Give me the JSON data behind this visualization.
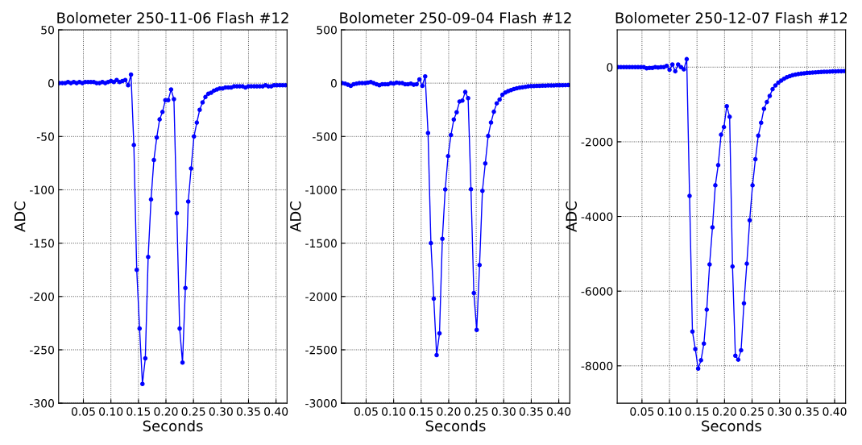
{
  "chart_data": [
    {
      "type": "line",
      "title": "Bolometer 250-11-06 Flash #12",
      "xlabel": "Seconds",
      "ylabel": "ADC",
      "xlim": [
        0.005,
        0.42
      ],
      "xticks": [
        {
          "value": 0.05,
          "label": "0.05"
        },
        {
          "value": 0.1,
          "label": "0.10"
        },
        {
          "value": 0.15,
          "label": "0.15"
        },
        {
          "value": 0.2,
          "label": "0.20"
        },
        {
          "value": 0.25,
          "label": "0.25"
        },
        {
          "value": 0.3,
          "label": "0.30"
        },
        {
          "value": 0.35,
          "label": "0.35"
        },
        {
          "value": 0.4,
          "label": "0.40"
        }
      ],
      "ylim": [
        -300,
        50
      ],
      "yticks": [
        -300,
        -250,
        -200,
        -150,
        -100,
        -50,
        0,
        50
      ],
      "grid": true,
      "marker": "circle",
      "line_style": "solid",
      "x": [
        0.0065,
        0.0117,
        0.0169,
        0.0221,
        0.0273,
        0.0325,
        0.0377,
        0.0429,
        0.0481,
        0.0533,
        0.0585,
        0.0637,
        0.0689,
        0.0741,
        0.0793,
        0.0845,
        0.0897,
        0.0949,
        0.1001,
        0.1053,
        0.1105,
        0.1157,
        0.1209,
        0.1261,
        0.1313,
        0.1365,
        0.1417,
        0.1469,
        0.1521,
        0.1573,
        0.1625,
        0.1677,
        0.1729,
        0.1781,
        0.1833,
        0.1885,
        0.1937,
        0.1989,
        0.2041,
        0.2093,
        0.2145,
        0.2197,
        0.2249,
        0.2301,
        0.2353,
        0.2405,
        0.2457,
        0.2509,
        0.2561,
        0.2613,
        0.2665,
        0.2717,
        0.2769,
        0.2821,
        0.2873,
        0.2925,
        0.2977,
        0.3029,
        0.3081,
        0.3133,
        0.3185,
        0.3237,
        0.3289,
        0.3341,
        0.3393,
        0.3445,
        0.3497,
        0.3549,
        0.3601,
        0.3653,
        0.3705,
        0.3757,
        0.3809,
        0.3861,
        0.3913,
        0.3965,
        0.4017,
        0.4069,
        0.4121,
        0.4173
      ],
      "series": [
        {
          "color": "#0000ff",
          "values": [
            0,
            0,
            0,
            1,
            0,
            1,
            0,
            1,
            0,
            1,
            1,
            1,
            1,
            0,
            0,
            1,
            0,
            1,
            2,
            1,
            3,
            1,
            2,
            3,
            -2,
            8,
            -58,
            -175,
            -230,
            -282,
            -258,
            -163,
            -109,
            -72,
            -51,
            -34,
            -27,
            -16,
            -16,
            -6,
            -15,
            -122,
            -230,
            -262,
            -192,
            -111,
            -80,
            -50,
            -37,
            -25,
            -18,
            -13,
            -10,
            -9,
            -7,
            -6,
            -5,
            -5,
            -4,
            -4,
            -4,
            -3,
            -3,
            -3,
            -3,
            -4,
            -3,
            -3,
            -3,
            -3,
            -3,
            -3,
            -2,
            -3,
            -3,
            -2,
            -2,
            -2,
            -2,
            -2
          ]
        }
      ]
    },
    {
      "type": "line",
      "title": "Bolometer 250-09-04 Flash #12",
      "xlabel": "Seconds",
      "ylabel": "ADC",
      "xlim": [
        0.005,
        0.42
      ],
      "xticks": [
        {
          "value": 0.05,
          "label": "0.05"
        },
        {
          "value": 0.1,
          "label": "0.10"
        },
        {
          "value": 0.15,
          "label": "0.15"
        },
        {
          "value": 0.2,
          "label": "0.20"
        },
        {
          "value": 0.25,
          "label": "0.25"
        },
        {
          "value": 0.3,
          "label": "0.30"
        },
        {
          "value": 0.35,
          "label": "0.35"
        },
        {
          "value": 0.4,
          "label": "0.40"
        }
      ],
      "ylim": [
        -3000,
        500
      ],
      "yticks": [
        -3000,
        -2500,
        -2000,
        -1500,
        -1000,
        -500,
        0,
        500
      ],
      "grid": true,
      "marker": "circle",
      "line_style": "solid",
      "x": [
        0.0065,
        0.0117,
        0.0169,
        0.0221,
        0.0273,
        0.0325,
        0.0377,
        0.0429,
        0.0481,
        0.0533,
        0.0585,
        0.0637,
        0.0689,
        0.0741,
        0.0793,
        0.0845,
        0.0897,
        0.0949,
        0.1001,
        0.1053,
        0.1105,
        0.1157,
        0.1209,
        0.1261,
        0.1313,
        0.1365,
        0.1417,
        0.1469,
        0.1521,
        0.1573,
        0.1625,
        0.1677,
        0.1729,
        0.1781,
        0.1833,
        0.1885,
        0.1937,
        0.1989,
        0.2041,
        0.2093,
        0.2145,
        0.2197,
        0.2249,
        0.2301,
        0.2353,
        0.2405,
        0.2457,
        0.2509,
        0.2561,
        0.2613,
        0.2665,
        0.2717,
        0.2769,
        0.2821,
        0.2873,
        0.2925,
        0.2977,
        0.3029,
        0.3081,
        0.3133,
        0.3185,
        0.3237,
        0.3289,
        0.3341,
        0.3393,
        0.3445,
        0.3497,
        0.3549,
        0.3601,
        0.3653,
        0.3705,
        0.3757,
        0.3809,
        0.3861,
        0.3913,
        0.3965,
        0.4017,
        0.4069,
        0.4121,
        0.4173
      ],
      "series": [
        {
          "color": "#0000ff",
          "values": [
            0,
            -5,
            -15,
            -25,
            -10,
            -5,
            0,
            0,
            0,
            5,
            10,
            0,
            -10,
            -20,
            -10,
            -10,
            -10,
            0,
            -5,
            5,
            0,
            0,
            -10,
            -10,
            -5,
            -15,
            -10,
            35,
            -25,
            63,
            -467,
            -1500,
            -2020,
            -2550,
            -2346,
            -1460,
            -997,
            -684,
            -487,
            -341,
            -273,
            -172,
            -164,
            -83,
            -141,
            -995,
            -1967,
            -2313,
            -1705,
            -1010,
            -753,
            -495,
            -369,
            -268,
            -189,
            -154,
            -109,
            -88,
            -75,
            -65,
            -55,
            -48,
            -42,
            -38,
            -35,
            -30,
            -28,
            -27,
            -25,
            -25,
            -24,
            -23,
            -22,
            -22,
            -21,
            -20,
            -20,
            -20,
            -19,
            -18
          ]
        }
      ]
    },
    {
      "type": "line",
      "title": "Bolometer 250-12-07 Flash #12",
      "xlabel": "Seconds",
      "ylabel": "ADC",
      "xlim": [
        0.005,
        0.42
      ],
      "xticks": [
        {
          "value": 0.05,
          "label": "0.05"
        },
        {
          "value": 0.1,
          "label": "0.10"
        },
        {
          "value": 0.15,
          "label": "0.15"
        },
        {
          "value": 0.2,
          "label": "0.20"
        },
        {
          "value": 0.25,
          "label": "0.25"
        },
        {
          "value": 0.3,
          "label": "0.30"
        },
        {
          "value": 0.35,
          "label": "0.35"
        },
        {
          "value": 0.4,
          "label": "0.40"
        }
      ],
      "ylim": [
        -9000,
        1000
      ],
      "yticks": [
        -8000,
        -6000,
        -4000,
        -2000,
        0
      ],
      "grid": true,
      "marker": "circle",
      "line_style": "solid",
      "x": [
        0.0065,
        0.0117,
        0.0169,
        0.0221,
        0.0273,
        0.0325,
        0.0377,
        0.0429,
        0.0481,
        0.0533,
        0.0585,
        0.0637,
        0.0689,
        0.0741,
        0.0793,
        0.0845,
        0.0897,
        0.0949,
        0.1001,
        0.1053,
        0.1105,
        0.1157,
        0.1209,
        0.1261,
        0.1313,
        0.1365,
        0.1417,
        0.1469,
        0.1521,
        0.1573,
        0.1625,
        0.1677,
        0.1729,
        0.1781,
        0.1833,
        0.1885,
        0.1937,
        0.1989,
        0.2041,
        0.2093,
        0.2145,
        0.2197,
        0.2249,
        0.2301,
        0.2353,
        0.2405,
        0.2457,
        0.2509,
        0.2561,
        0.2613,
        0.2665,
        0.2717,
        0.2769,
        0.2821,
        0.2873,
        0.2925,
        0.2977,
        0.3029,
        0.3081,
        0.3133,
        0.3185,
        0.3237,
        0.3289,
        0.3341,
        0.3393,
        0.3445,
        0.3497,
        0.3549,
        0.3601,
        0.3653,
        0.3705,
        0.3757,
        0.3809,
        0.3861,
        0.3913,
        0.3965,
        0.4017,
        0.4069,
        0.4121,
        0.4173
      ],
      "series": [
        {
          "color": "#0000ff",
          "values": [
            0,
            0,
            0,
            0,
            0,
            0,
            0,
            0,
            0,
            0,
            -30,
            -20,
            -20,
            0,
            -10,
            0,
            0,
            35,
            -70,
            70,
            -110,
            70,
            0,
            -60,
            215,
            -3450,
            -7080,
            -7550,
            -8075,
            -7850,
            -7405,
            -6495,
            -5285,
            -4290,
            -3165,
            -2625,
            -1810,
            -1605,
            -1045,
            -1330,
            -5340,
            -7730,
            -7835,
            -7585,
            -6325,
            -5265,
            -4100,
            -3165,
            -2465,
            -1835,
            -1490,
            -1115,
            -935,
            -770,
            -590,
            -490,
            -415,
            -360,
            -310,
            -270,
            -240,
            -215,
            -200,
            -185,
            -175,
            -165,
            -155,
            -150,
            -145,
            -140,
            -135,
            -130,
            -125,
            -125,
            -120,
            -115,
            -115,
            -110,
            -110,
            -105
          ]
        }
      ]
    }
  ]
}
